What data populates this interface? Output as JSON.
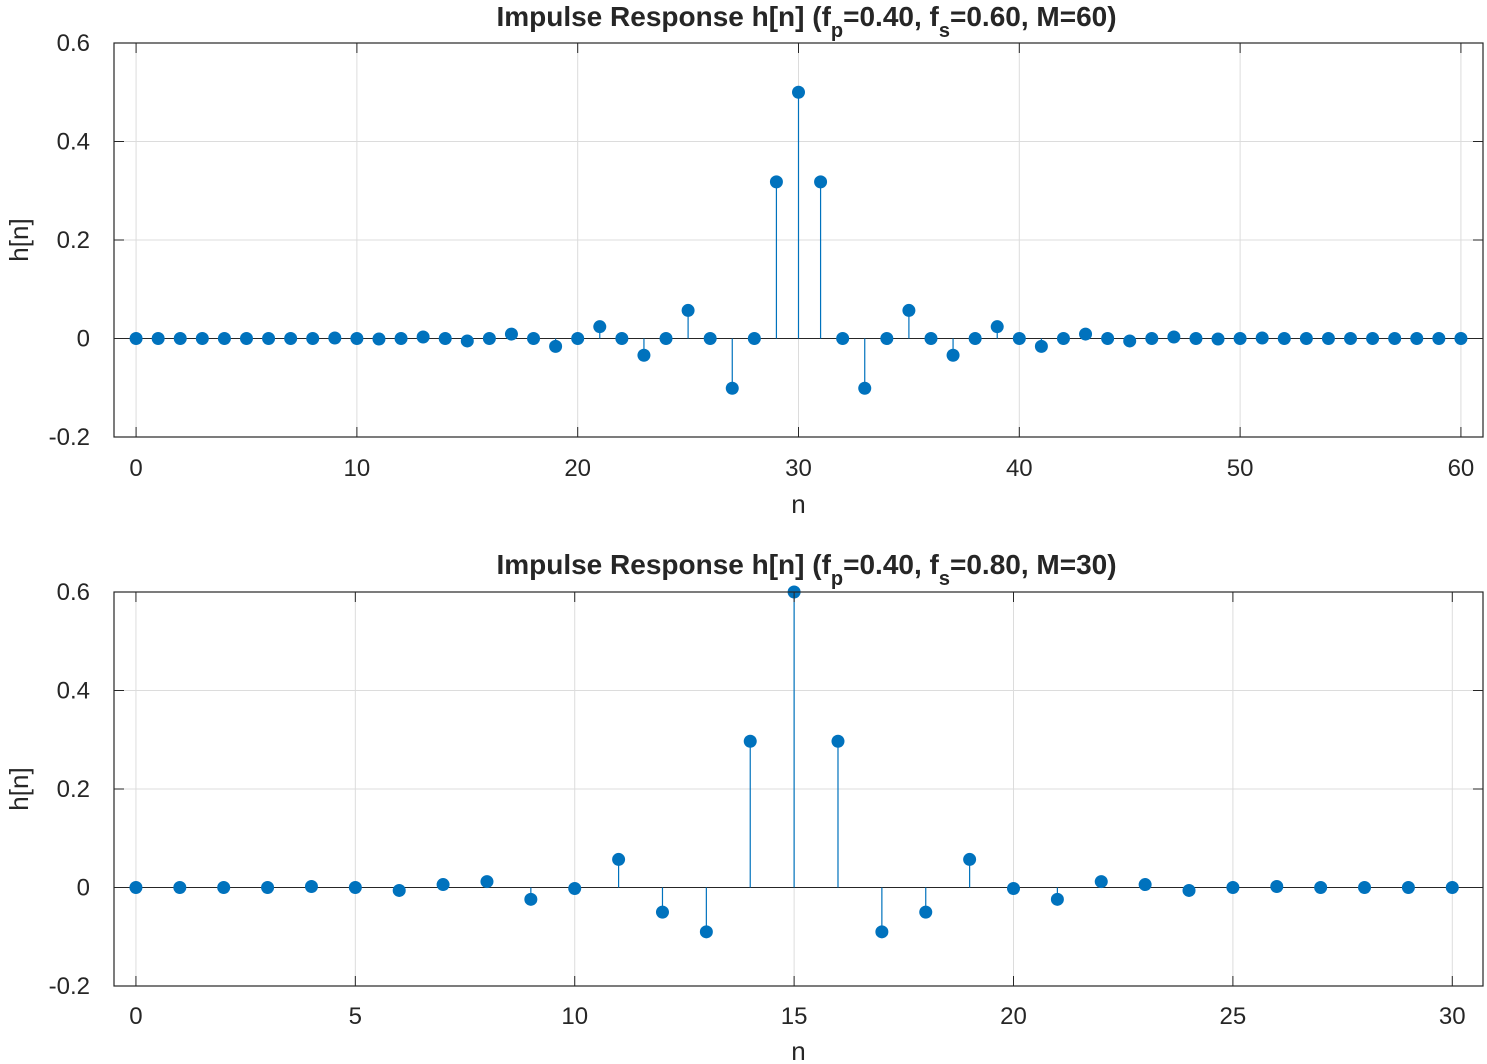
{
  "style": {
    "stem_color": "#0072BD",
    "grid_color": "#dcdcdc",
    "axis_color": "#262626",
    "background": "#ffffff"
  },
  "chart_data": [
    {
      "type": "stem",
      "title_parts": [
        "Impulse  Response  h[n]  (f",
        "p",
        "=0.40,  f",
        "s",
        "=0.60,  M=60)"
      ],
      "xlabel": "n",
      "ylabel": "h[n]",
      "xlim": [
        -1,
        61
      ],
      "ylim": [
        -0.2,
        0.6
      ],
      "xticks": [
        0,
        10,
        20,
        30,
        40,
        50,
        60
      ],
      "yticks": [
        -0.2,
        0,
        0.2,
        0.4,
        0.6
      ],
      "ytick_labels": [
        "-0.2",
        "0",
        "0.2",
        "0.4",
        "0.6"
      ],
      "grid": true,
      "x": [
        0,
        1,
        2,
        3,
        4,
        5,
        6,
        7,
        8,
        9,
        10,
        11,
        12,
        13,
        14,
        15,
        16,
        17,
        18,
        19,
        20,
        21,
        22,
        23,
        24,
        25,
        26,
        27,
        28,
        29,
        30,
        31,
        32,
        33,
        34,
        35,
        36,
        37,
        38,
        39,
        40,
        41,
        42,
        43,
        44,
        45,
        46,
        47,
        48,
        49,
        50,
        51,
        52,
        53,
        54,
        55,
        56,
        57,
        58,
        59,
        60
      ],
      "values": [
        0,
        0,
        0,
        0,
        0,
        0,
        0,
        0,
        0,
        0.001,
        0,
        -0.001,
        0,
        0.003,
        0,
        -0.005,
        0,
        0.009,
        0,
        -0.016,
        0,
        0.024,
        0,
        -0.034,
        0,
        0.057,
        0,
        -0.101,
        0,
        0.318,
        0.5,
        0.318,
        0,
        -0.101,
        0,
        0.057,
        0,
        -0.034,
        0,
        0.024,
        0,
        -0.016,
        0,
        0.009,
        0,
        -0.005,
        0,
        0.003,
        0,
        -0.001,
        0,
        0.001,
        0,
        0,
        0,
        0,
        0,
        0,
        0,
        0,
        0
      ]
    },
    {
      "type": "stem",
      "title_parts": [
        "Impulse  Response  h[n]  (f",
        "p",
        "=0.40,  f",
        "s",
        "=0.80,  M=30)"
      ],
      "xlabel": "n",
      "ylabel": "h[n]",
      "xlim": [
        -0.5,
        30.7
      ],
      "ylim": [
        -0.2,
        0.6
      ],
      "xticks": [
        0,
        5,
        10,
        15,
        20,
        25,
        30
      ],
      "yticks": [
        -0.2,
        0,
        0.2,
        0.4,
        0.6
      ],
      "ytick_labels": [
        "-0.2",
        "0",
        "0.2",
        "0.4",
        "0.6"
      ],
      "grid": true,
      "x": [
        0,
        1,
        2,
        3,
        4,
        5,
        6,
        7,
        8,
        9,
        10,
        11,
        12,
        13,
        14,
        15,
        16,
        17,
        18,
        19,
        20,
        21,
        22,
        23,
        24,
        25,
        26,
        27,
        28,
        29,
        30
      ],
      "values": [
        0,
        0,
        0,
        0,
        0.002,
        0,
        -0.006,
        0.006,
        0.012,
        -0.024,
        -0.002,
        0.057,
        -0.05,
        -0.09,
        0.297,
        0.6,
        0.297,
        -0.09,
        -0.05,
        0.057,
        -0.002,
        -0.024,
        0.012,
        0.006,
        -0.006,
        0,
        0.002,
        0,
        0,
        0,
        0
      ]
    }
  ]
}
